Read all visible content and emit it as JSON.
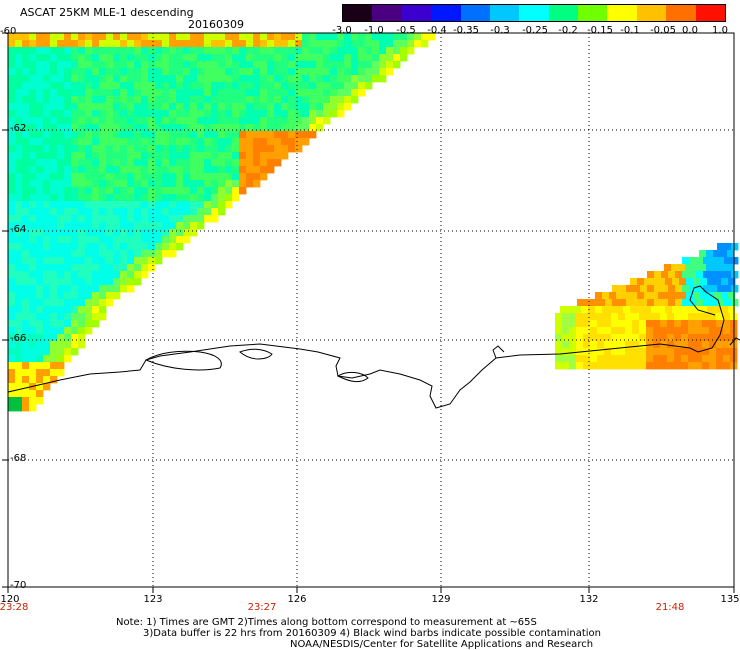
{
  "title": "ASCAT 25KM MLE-1 descending",
  "date": "20160309",
  "colorbar": {
    "labels": [
      "-3.0",
      "-1.0",
      "-0.5",
      "-0.4",
      "-0.35",
      "-0.3",
      "-0.25",
      "-0.2",
      "-0.15",
      "-0.1",
      "-0.05",
      "0.0",
      "1.0"
    ],
    "colors": [
      "#1a0016",
      "#4a0080",
      "#3b00d0",
      "#0018ff",
      "#0070ff",
      "#00c8ff",
      "#00ffff",
      "#00ff80",
      "#70ff00",
      "#ffff00",
      "#ffc000",
      "#ff7000",
      "#ff1000"
    ]
  },
  "lat_labels": [
    "-60",
    "-62",
    "-64",
    "-66",
    "-68",
    "-70"
  ],
  "lon_labels": [
    "120",
    "123",
    "126",
    "129",
    "132",
    "135"
  ],
  "time_labels": [
    "23:28",
    "23:27",
    "21:48"
  ],
  "notes": [
    "Note: 1) Times are GMT 2)Times along bottom correspond to measurement at ~65S",
    "3)Data buffer is 22 hrs from 20160309 4) Black wind barbs indicate possible contamination",
    "NOAA/NESDIS/Center for Satellite Applications and Research"
  ]
}
